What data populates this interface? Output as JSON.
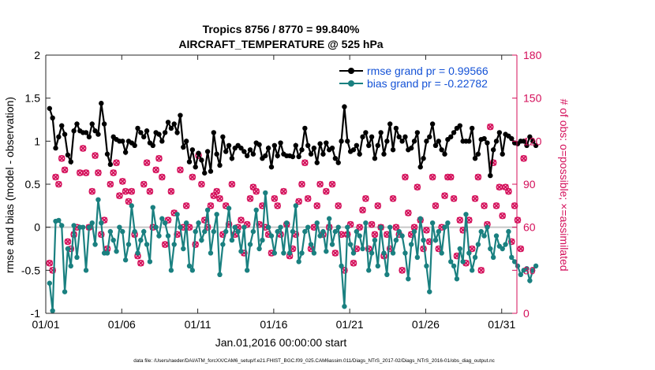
{
  "chart_data": {
    "type": "line",
    "title_line1": "Tropics 8756 / 8770 = 99.840%",
    "title_line2": "AIRCRAFT_TEMPERATURE @ 525 hPa",
    "xlabel": "Jan.01,2016 00:00:00 start",
    "ylabel_left": "rmse and bias (model - observation)",
    "ylabel_right": "# of obs: o=possible; ×=assimilated",
    "footer": "data file: /Users/raeder/DAI/ATM_forcXX/CAM6_setup/f.e21.FHIST_BGC.f09_025.CAM6assim.011/Diags_NTrS_2017-02/Diags_NTrS_2016-01/obs_diag_output.nc",
    "x_ticks": [
      {
        "day": 1,
        "label": "01/01"
      },
      {
        "day": 6,
        "label": "01/06"
      },
      {
        "day": 11,
        "label": "01/11"
      },
      {
        "day": 16,
        "label": "01/16"
      },
      {
        "day": 21,
        "label": "01/21"
      },
      {
        "day": 26,
        "label": "01/26"
      },
      {
        "day": 31,
        "label": "01/31"
      }
    ],
    "xlim": [
      1,
      32
    ],
    "ylim_left": [
      -1,
      2
    ],
    "y_ticks_left": [
      {
        "v": -1,
        "label": "-1"
      },
      {
        "v": -0.5,
        "label": "-0.5"
      },
      {
        "v": 0,
        "label": "0"
      },
      {
        "v": 0.5,
        "label": "0.5"
      },
      {
        "v": 1,
        "label": "1"
      },
      {
        "v": 1.5,
        "label": "1.5"
      },
      {
        "v": 2,
        "label": "2"
      }
    ],
    "ylim_right": [
      0,
      180
    ],
    "y_ticks_right": [
      {
        "v": 0,
        "label": "0"
      },
      {
        "v": 30,
        "label": "30"
      },
      {
        "v": 60,
        "label": "60"
      },
      {
        "v": 90,
        "label": "90"
      },
      {
        "v": 120,
        "label": "120"
      },
      {
        "v": 150,
        "label": "150"
      },
      {
        "v": 180,
        "label": "180"
      }
    ],
    "legend": {
      "rmse": "rmse grand pr = 0.99566",
      "bias": "bias grand pr = -0.22782"
    },
    "colors": {
      "rmse": "#000000",
      "bias": "#1a8080",
      "obs": "#d40f5a",
      "zero_line": "#c8c8c8",
      "legend_text": "#1452d6"
    },
    "rmse": [
      1.38,
      1.27,
      0.92,
      1.05,
      1.18,
      1.08,
      0.84,
      0.76,
      1.12,
      1.2,
      1.12,
      1.1,
      1.1,
      1.05,
      1.2,
      1.12,
      1.08,
      1.44,
      1.2,
      0.85,
      0.73,
      1.05,
      1.02,
      1.0,
      1.0,
      0.87,
      1.0,
      0.98,
      0.95,
      1.15,
      1.1,
      1.05,
      1.12,
      0.98,
      0.95,
      1.1,
      1.08,
      1.0,
      1.1,
      1.22,
      1.15,
      1.2,
      1.1,
      1.3,
      0.93,
      1.0,
      0.76,
      0.9,
      0.7,
      0.86,
      0.78,
      0.63,
      0.88,
      0.65,
      1.1,
      0.85,
      0.72,
      1.05,
      0.88,
      0.95,
      0.8,
      0.92,
      0.95,
      0.92,
      0.88,
      0.83,
      0.9,
      0.85,
      0.98,
      0.96,
      0.8,
      0.83,
      0.92,
      0.7,
      0.95,
      0.83,
      0.98,
      0.85,
      0.83,
      0.83,
      0.82,
      0.95,
      0.82,
      0.9,
      1.15,
      0.95,
      0.85,
      0.92,
      0.75,
      0.97,
      0.85,
      0.98,
      0.9,
      0.92,
      0.8,
      0.75,
      1.0,
      1.4,
      1.0,
      0.88,
      0.9,
      0.95,
      0.85,
      1.05,
      1.1,
      0.95,
      1.05,
      0.8,
      0.95,
      1.1,
      0.85,
      1.0,
      1.2,
      0.9,
      1.15,
      1.05,
      1.0,
      1.05,
      0.9,
      0.92,
      1.0,
      1.1,
      0.7,
      0.8,
      1.0,
      1.05,
      1.2,
      0.95,
      1.0,
      0.9,
      0.85,
      1.02,
      1.05,
      1.1,
      1.15,
      1.18,
      1.0,
      1.0,
      1.0,
      1.15,
      0.8,
      0.85,
      1.02,
      1.03,
      0.98,
      0.6,
      0.9,
      1.0,
      1.1,
      0.85,
      1.08,
      1.06,
      1.03,
      0.98,
      0.97,
      1.0,
      1.0,
      0.95,
      1.05,
      1.0,
      0.95
    ],
    "bias": [
      -0.65,
      -0.97,
      0.07,
      0.08,
      0.02,
      -0.75,
      -0.25,
      -0.45,
      0.02,
      -0.35,
      0.0,
      0.0,
      -0.5,
      0.0,
      0.05,
      -0.2,
      0.32,
      0.05,
      -0.3,
      -0.3,
      -0.05,
      -0.15,
      -0.28,
      0.0,
      -0.05,
      -0.38,
      -0.2,
      0.25,
      -0.05,
      -0.3,
      -0.15,
      -0.05,
      -0.2,
      -0.4,
      0.23,
      0.0,
      -0.1,
      0.1,
      0.05,
      -0.1,
      -0.5,
      -0.2,
      0.15,
      0.0,
      -0.25,
      0.05,
      -0.45,
      -0.5,
      -0.05,
      0.05,
      -0.15,
      -0.05,
      0.2,
      -0.3,
      -0.05,
      0.15,
      -0.55,
      -0.2,
      -0.05,
      0.22,
      -0.15,
      0.0,
      -0.05,
      -0.28,
      0.0,
      -0.5,
      -0.2,
      -0.05,
      0.2,
      -0.25,
      -0.15,
      0.4,
      0.0,
      -0.1,
      -0.3,
      -0.05,
      0.0,
      -0.3,
      0.05,
      -0.3,
      -0.05,
      0.25,
      -0.4,
      -0.3,
      -0.05,
      0.0,
      -0.2,
      -0.3,
      0.05,
      -0.1,
      -0.05,
      -0.28,
      0.1,
      -0.2,
      -0.05,
      0.0,
      -0.45,
      -0.92,
      0.0,
      -0.2,
      -0.3,
      -0.05,
      -0.1,
      -0.25,
      0.05,
      -0.5,
      -0.3,
      -0.15,
      -0.45,
      0.0,
      -0.3,
      -0.55,
      0.0,
      -0.3,
      -0.15,
      -0.05,
      -0.1,
      -0.3,
      -0.6,
      -0.2,
      -0.05,
      -0.35,
      0.1,
      -0.15,
      -0.45,
      -0.75,
      0.05,
      -0.15,
      -0.05,
      -0.3,
      0.0,
      0.05,
      -0.4,
      -0.45,
      -0.6,
      -0.25,
      -0.4,
      0.15,
      -0.3,
      -0.5,
      -0.35,
      -0.2,
      -0.05,
      -0.1,
      0.0,
      -0.25,
      -0.35,
      -0.1,
      -0.22,
      -0.25,
      -0.2,
      -0.05,
      -0.35,
      -0.4,
      -0.45,
      -0.55,
      -0.5,
      -0.48,
      -0.62,
      -0.5,
      -0.45
    ],
    "obs_possible": [
      35,
      30,
      95,
      90,
      108,
      100,
      50,
      45,
      55,
      60,
      98,
      115,
      98,
      60,
      85,
      110,
      98,
      55,
      65,
      45,
      90,
      98,
      105,
      82,
      92,
      85,
      78,
      85,
      55,
      40,
      35,
      90,
      105,
      85,
      60,
      100,
      108,
      95,
      48,
      65,
      85,
      70,
      55,
      100,
      60,
      75,
      60,
      95,
      48,
      110,
      90,
      65,
      60,
      75,
      82,
      85,
      80,
      55,
      75,
      62,
      90,
      55,
      60,
      65,
      42,
      62,
      80,
      88,
      85,
      62,
      75,
      60,
      55,
      42,
      80,
      75,
      55,
      85,
      62,
      40,
      45,
      55,
      78,
      90,
      105,
      80,
      45,
      60,
      75,
      90,
      55,
      85,
      60,
      90,
      42,
      75,
      55,
      30,
      55,
      62,
      35,
      45,
      60,
      72,
      80,
      45,
      62,
      55,
      75,
      60,
      40,
      55,
      45,
      80,
      60,
      55,
      30,
      95,
      70,
      55,
      60,
      88,
      65,
      45,
      58,
      50,
      95,
      75,
      45,
      60,
      82,
      95,
      95,
      80,
      40,
      65,
      58,
      35,
      65,
      45,
      80,
      95,
      30,
      75,
      62,
      130,
      105,
      75,
      88,
      68,
      88,
      85,
      50,
      75,
      65,
      45,
      108
    ],
    "obs_assimilated": [
      35,
      30,
      95,
      90,
      108,
      100,
      50,
      45,
      55,
      60,
      98,
      115,
      98,
      60,
      85,
      110,
      98,
      55,
      65,
      45,
      90,
      98,
      105,
      82,
      92,
      85,
      78,
      85,
      55,
      40,
      35,
      90,
      105,
      85,
      60,
      100,
      108,
      95,
      48,
      65,
      85,
      70,
      55,
      100,
      60,
      75,
      60,
      95,
      48,
      110,
      90,
      65,
      60,
      75,
      82,
      85,
      80,
      55,
      75,
      62,
      90,
      55,
      60,
      65,
      42,
      62,
      80,
      88,
      85,
      62,
      75,
      60,
      55,
      42,
      80,
      75,
      55,
      85,
      62,
      40,
      45,
      55,
      78,
      90,
      105,
      80,
      45,
      60,
      75,
      90,
      55,
      85,
      60,
      90,
      42,
      75,
      55,
      30,
      55,
      62,
      35,
      45,
      60,
      72,
      80,
      45,
      62,
      55,
      75,
      60,
      40,
      55,
      45,
      80,
      60,
      55,
      30,
      95,
      70,
      55,
      60,
      88,
      65,
      45,
      58,
      50,
      95,
      75,
      45,
      60,
      82,
      95,
      95,
      80,
      40,
      65,
      58,
      35,
      65,
      45,
      80,
      95,
      30,
      75,
      62,
      130,
      105,
      75,
      88,
      68,
      88,
      85,
      50,
      75,
      65,
      45,
      108
    ]
  }
}
